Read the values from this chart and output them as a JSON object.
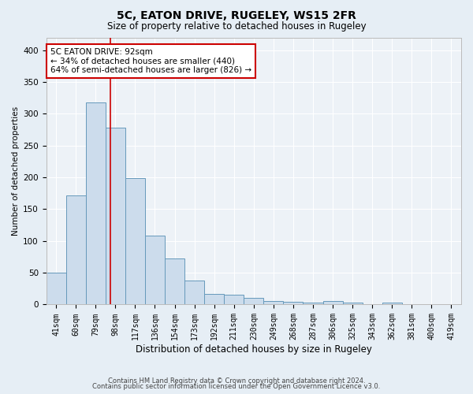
{
  "title1": "5C, EATON DRIVE, RUGELEY, WS15 2FR",
  "title2": "Size of property relative to detached houses in Rugeley",
  "xlabel": "Distribution of detached houses by size in Rugeley",
  "ylabel": "Number of detached properties",
  "categories": [
    "41sqm",
    "60sqm",
    "79sqm",
    "98sqm",
    "117sqm",
    "136sqm",
    "154sqm",
    "173sqm",
    "192sqm",
    "211sqm",
    "230sqm",
    "249sqm",
    "268sqm",
    "287sqm",
    "306sqm",
    "325sqm",
    "343sqm",
    "362sqm",
    "381sqm",
    "400sqm",
    "419sqm"
  ],
  "values": [
    50,
    172,
    318,
    278,
    199,
    109,
    73,
    38,
    17,
    16,
    10,
    5,
    4,
    3,
    5,
    3,
    1,
    3,
    1,
    1,
    1
  ],
  "bar_color": "#ccdcec",
  "bar_edge_color": "#6699bb",
  "vline_x": 2.75,
  "vline_color": "#cc0000",
  "annotation_text": "5C EATON DRIVE: 92sqm\n← 34% of detached houses are smaller (440)\n64% of semi-detached houses are larger (826) →",
  "annotation_box_facecolor": "#ffffff",
  "annotation_box_edgecolor": "#cc0000",
  "ylim": [
    0,
    420
  ],
  "yticks": [
    0,
    50,
    100,
    150,
    200,
    250,
    300,
    350,
    400
  ],
  "footer1": "Contains HM Land Registry data © Crown copyright and database right 2024.",
  "footer2": "Contains public sector information licensed under the Open Government Licence v3.0.",
  "background_color": "#e6eef5",
  "plot_bg_color": "#edf2f7",
  "grid_color": "#ffffff",
  "title1_fontsize": 10,
  "title2_fontsize": 8.5,
  "ylabel_fontsize": 7.5,
  "xlabel_fontsize": 8.5,
  "tick_fontsize": 7,
  "footer_fontsize": 6
}
